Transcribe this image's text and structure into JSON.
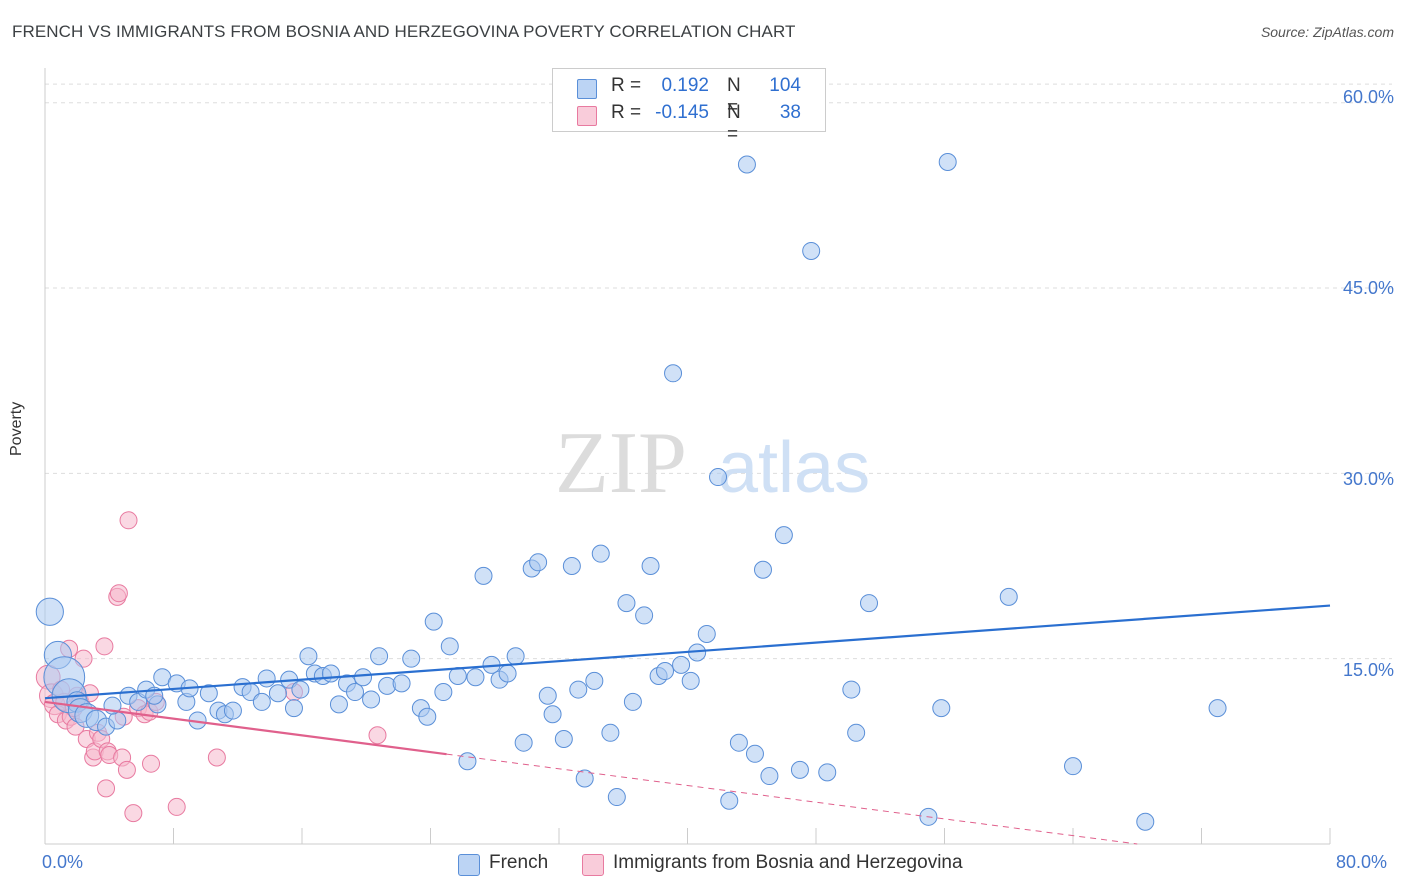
{
  "title": "FRENCH VS IMMIGRANTS FROM BOSNIA AND HERZEGOVINA POVERTY CORRELATION CHART",
  "source": "Source: ZipAtlas.com",
  "watermark": {
    "zip": "ZIP",
    "atlas": "atlas"
  },
  "colors": {
    "blue_fill": "#aac8f0",
    "blue_stroke": "#5a8fd8",
    "blue_line": "#2a6fd0",
    "pink_fill": "#f5b8cc",
    "pink_stroke": "#e87aa0",
    "pink_line": "#e0608c",
    "axis_text": "#4477cc",
    "grid": "#dddddd"
  },
  "legend": {
    "rows": [
      {
        "r_label": "R =",
        "r_value": "0.192",
        "n_label": "N =",
        "n_value": "104"
      },
      {
        "r_label": "R =",
        "r_value": "-0.145",
        "n_label": "N =",
        "n_value": "38"
      }
    ]
  },
  "bottom_legend": {
    "french": "French",
    "bosnia": "Immigrants from Bosnia and Herzegovina"
  },
  "chart_data": {
    "type": "scatter",
    "title": "FRENCH VS IMMIGRANTS FROM BOSNIA AND HERZEGOVINA POVERTY CORRELATION CHART",
    "xlabel": "",
    "ylabel": "Poverty",
    "xlim": [
      0,
      80
    ],
    "ylim": [
      0,
      62
    ],
    "x_tick_labels": [
      "0.0%",
      "80.0%"
    ],
    "y_ticks": [
      15,
      30,
      45,
      60
    ],
    "y_tick_labels": [
      "15.0%",
      "30.0%",
      "45.0%",
      "60.0%"
    ],
    "grid": true,
    "legend_position": "top-center",
    "series": [
      {
        "name": "French",
        "R": 0.192,
        "N": 104,
        "trend": {
          "x0": 0,
          "y0": 11.8,
          "x1": 80,
          "y1": 19.3,
          "extends_solid_to": 80
        },
        "points": [
          [
            0.3,
            18.8,
            1.6
          ],
          [
            0.8,
            15.3,
            1.6
          ],
          [
            1.2,
            13.5,
            2.4
          ],
          [
            1.5,
            12.0,
            2.0
          ],
          [
            2.0,
            11.5,
            1.2
          ],
          [
            2.2,
            10.8,
            1.4
          ],
          [
            2.6,
            10.4,
            1.4
          ],
          [
            3.2,
            10.0,
            1.2
          ],
          [
            3.8,
            9.5,
            1.0
          ],
          [
            4.5,
            10.0,
            1.0
          ],
          [
            5.2,
            12.0,
            1.0
          ],
          [
            5.8,
            11.5,
            1.0
          ],
          [
            6.3,
            12.5,
            1.0
          ],
          [
            7.0,
            11.3,
            1.0
          ],
          [
            7.3,
            13.5,
            1.0
          ],
          [
            8.2,
            13.0,
            1.0
          ],
          [
            8.8,
            11.5,
            1.0
          ],
          [
            9.5,
            10.0,
            1.0
          ],
          [
            10.2,
            12.2,
            1.0
          ],
          [
            10.8,
            10.8,
            1.0
          ],
          [
            11.2,
            10.5,
            1.0
          ],
          [
            11.7,
            10.8,
            1.0
          ],
          [
            12.3,
            12.7,
            1.0
          ],
          [
            12.8,
            12.3,
            1.0
          ],
          [
            13.5,
            11.5,
            1.0
          ],
          [
            13.8,
            13.4,
            1.0
          ],
          [
            14.5,
            12.2,
            1.0
          ],
          [
            15.2,
            13.3,
            1.0
          ],
          [
            15.5,
            11.0,
            1.0
          ],
          [
            15.9,
            12.5,
            1.0
          ],
          [
            16.4,
            15.2,
            1.0
          ],
          [
            16.8,
            13.8,
            1.0
          ],
          [
            17.3,
            13.6,
            1.0
          ],
          [
            17.8,
            13.8,
            1.0
          ],
          [
            18.3,
            11.3,
            1.0
          ],
          [
            18.8,
            13.0,
            1.0
          ],
          [
            19.3,
            12.3,
            1.0
          ],
          [
            19.8,
            13.5,
            1.0
          ],
          [
            20.3,
            11.7,
            1.0
          ],
          [
            20.8,
            15.2,
            1.0
          ],
          [
            21.3,
            12.8,
            1.0
          ],
          [
            22.2,
            13.0,
            1.0
          ],
          [
            22.8,
            15.0,
            1.0
          ],
          [
            23.4,
            11.0,
            1.0
          ],
          [
            23.8,
            10.3,
            1.0
          ],
          [
            24.2,
            18.0,
            1.0
          ],
          [
            24.8,
            12.3,
            1.0
          ],
          [
            25.2,
            16.0,
            1.0
          ],
          [
            25.7,
            13.6,
            1.0
          ],
          [
            26.3,
            6.7,
            1.0
          ],
          [
            26.8,
            13.5,
            1.0
          ],
          [
            27.3,
            21.7,
            1.0
          ],
          [
            27.8,
            14.5,
            1.0
          ],
          [
            28.3,
            13.3,
            1.0
          ],
          [
            28.8,
            13.8,
            1.0
          ],
          [
            29.3,
            15.2,
            1.0
          ],
          [
            29.8,
            8.2,
            1.0
          ],
          [
            30.3,
            22.3,
            1.0
          ],
          [
            30.7,
            22.8,
            1.0
          ],
          [
            31.3,
            12.0,
            1.0
          ],
          [
            31.6,
            10.5,
            1.0
          ],
          [
            32.3,
            8.5,
            1.0
          ],
          [
            32.8,
            22.5,
            1.0
          ],
          [
            33.2,
            12.5,
            1.0
          ],
          [
            33.6,
            5.3,
            1.0
          ],
          [
            34.2,
            13.2,
            1.0
          ],
          [
            34.6,
            23.5,
            1.0
          ],
          [
            35.2,
            9.0,
            1.0
          ],
          [
            35.6,
            3.8,
            1.0
          ],
          [
            36.2,
            19.5,
            1.0
          ],
          [
            36.6,
            11.5,
            1.0
          ],
          [
            37.3,
            18.5,
            1.0
          ],
          [
            37.7,
            22.5,
            1.0
          ],
          [
            38.2,
            13.6,
            1.0
          ],
          [
            38.6,
            14.0,
            1.0
          ],
          [
            39.1,
            38.1,
            1.0
          ],
          [
            39.6,
            14.5,
            1.0
          ],
          [
            40.2,
            13.2,
            1.0
          ],
          [
            40.6,
            15.5,
            1.0
          ],
          [
            41.2,
            17.0,
            1.0
          ],
          [
            41.9,
            29.7,
            1.0
          ],
          [
            42.6,
            3.5,
            1.0
          ],
          [
            43.2,
            8.2,
            1.0
          ],
          [
            43.7,
            55.0,
            1.0
          ],
          [
            44.2,
            7.3,
            1.0
          ],
          [
            44.7,
            22.2,
            1.0
          ],
          [
            45.1,
            5.5,
            1.0
          ],
          [
            46.0,
            25.0,
            1.0
          ],
          [
            47.0,
            6.0,
            1.0
          ],
          [
            47.7,
            48.0,
            1.0
          ],
          [
            48.7,
            5.8,
            1.0
          ],
          [
            50.2,
            12.5,
            1.0
          ],
          [
            50.5,
            9.0,
            1.0
          ],
          [
            51.3,
            19.5,
            1.0
          ],
          [
            55.0,
            2.2,
            1.0
          ],
          [
            55.8,
            11.0,
            1.0
          ],
          [
            56.2,
            55.2,
            1.0
          ],
          [
            60.0,
            20.0,
            1.0
          ],
          [
            64.0,
            6.3,
            1.0
          ],
          [
            68.5,
            1.8,
            1.0
          ],
          [
            73.0,
            11.0,
            1.0
          ],
          [
            4.2,
            11.2,
            1.0
          ],
          [
            6.8,
            12.0,
            1.0
          ],
          [
            9.0,
            12.6,
            1.0
          ]
        ]
      },
      {
        "name": "Immigrants from Bosnia and Herzegovina",
        "R": -0.145,
        "N": 38,
        "trend": {
          "x0": 0,
          "y0": 11.5,
          "x1": 68,
          "y1": 0,
          "extends_solid_to": 25
        },
        "points": [
          [
            0.2,
            13.5,
            1.4
          ],
          [
            0.4,
            12.0,
            1.4
          ],
          [
            0.6,
            11.3,
            1.2
          ],
          [
            0.8,
            10.5,
            1.0
          ],
          [
            1.0,
            12.5,
            1.0
          ],
          [
            1.2,
            11.5,
            1.0
          ],
          [
            1.3,
            10.0,
            1.0
          ],
          [
            1.5,
            15.8,
            1.0
          ],
          [
            1.6,
            10.3,
            1.0
          ],
          [
            1.8,
            11.0,
            1.0
          ],
          [
            1.9,
            9.5,
            1.0
          ],
          [
            2.0,
            12.0,
            1.0
          ],
          [
            2.2,
            11.5,
            1.0
          ],
          [
            2.4,
            15.0,
            1.0
          ],
          [
            2.6,
            8.5,
            1.0
          ],
          [
            2.8,
            12.2,
            1.0
          ],
          [
            3.0,
            7.0,
            1.0
          ],
          [
            3.1,
            7.5,
            1.0
          ],
          [
            3.3,
            9.0,
            1.0
          ],
          [
            3.5,
            8.5,
            1.0
          ],
          [
            3.7,
            16.0,
            1.0
          ],
          [
            3.8,
            4.5,
            1.0
          ],
          [
            3.9,
            7.5,
            1.0
          ],
          [
            4.0,
            7.2,
            1.0
          ],
          [
            4.5,
            20.0,
            1.0
          ],
          [
            4.6,
            20.3,
            1.0
          ],
          [
            4.8,
            7.0,
            1.0
          ],
          [
            4.9,
            10.3,
            1.0
          ],
          [
            5.1,
            6.0,
            1.0
          ],
          [
            5.2,
            26.2,
            1.0
          ],
          [
            5.5,
            2.5,
            1.0
          ],
          [
            5.8,
            11.0,
            1.0
          ],
          [
            6.2,
            10.5,
            1.0
          ],
          [
            6.5,
            10.7,
            1.0
          ],
          [
            6.6,
            6.5,
            1.0
          ],
          [
            6.9,
            11.5,
            1.0
          ],
          [
            8.2,
            3.0,
            1.0
          ],
          [
            10.7,
            7.0,
            1.0
          ]
        ]
      }
    ],
    "extra_points_pink": [
      [
        15.5,
        12.3,
        1.0
      ],
      [
        20.7,
        8.8,
        1.0
      ]
    ]
  }
}
